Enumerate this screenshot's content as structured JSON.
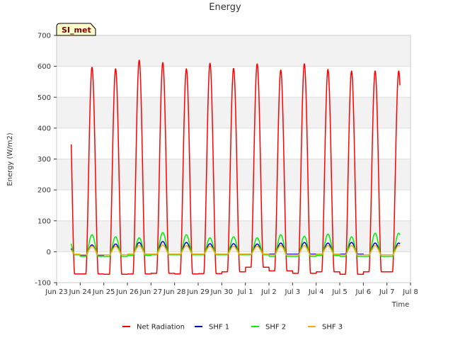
{
  "chart_data": {
    "type": "line",
    "title": "Energy",
    "xlabel": "Time",
    "ylabel": "Energy (W/m2)",
    "badge": "SI_met",
    "ylim": [
      -100,
      700
    ],
    "xlim": [
      0,
      15
    ],
    "yticks": [
      -100,
      0,
      100,
      200,
      300,
      400,
      500,
      600,
      700
    ],
    "xtick_labels": [
      "Jun 23",
      "Jun 24",
      "Jun 25",
      "Jun 26",
      "Jun 27",
      "Jun 28",
      "Jun 29",
      "Jun 30",
      "Jul 1",
      "Jul 2",
      "Jul 3",
      "Jul 4",
      "Jul 5",
      "Jul 6",
      "Jul 7",
      "Jul 8"
    ],
    "x_units": "days since Jun 23",
    "x_start": 0.62,
    "x_end": 14.55,
    "series": [
      {
        "name": "Net Radiation",
        "color": "#ff0000",
        "width": 1.5,
        "daily_peak": [
          595,
          597,
          592,
          620,
          612,
          592,
          610,
          593,
          608,
          588,
          608,
          590,
          585,
          585
        ],
        "night_min": [
          -72,
          -72,
          -73,
          -72,
          -70,
          -72,
          -71,
          -65,
          -50,
          -62,
          -70,
          -65,
          -73,
          -65
        ]
      },
      {
        "name": "SHF 1",
        "color": "#0000cc",
        "width": 1.5,
        "daily_peak": [
          22,
          22,
          25,
          30,
          33,
          30,
          26,
          26,
          25,
          28,
          30,
          28,
          30,
          28
        ],
        "night_min": [
          -10,
          -12,
          -10,
          -8,
          -8,
          -8,
          -8,
          -8,
          -8,
          -8,
          -8,
          -8,
          -8,
          -10
        ]
      },
      {
        "name": "SHF 2",
        "color": "#00ee00",
        "width": 1.5,
        "daily_peak": [
          47,
          55,
          48,
          45,
          62,
          55,
          45,
          48,
          45,
          55,
          50,
          57,
          48,
          60
        ],
        "night_min": [
          -10,
          -15,
          -15,
          -12,
          -10,
          -10,
          -10,
          -10,
          -10,
          -15,
          -15,
          -12,
          -15,
          -15
        ]
      },
      {
        "name": "SHF 3",
        "color": "#ffaa00",
        "width": 1.5,
        "daily_peak": [
          15,
          18,
          18,
          20,
          22,
          20,
          18,
          18,
          18,
          20,
          20,
          20,
          20,
          20
        ],
        "night_min": [
          -8,
          -10,
          -10,
          -8,
          -8,
          -8,
          -8,
          -8,
          -8,
          -10,
          -10,
          -8,
          -10,
          -10
        ]
      }
    ],
    "legend_position": "bottom-center"
  }
}
